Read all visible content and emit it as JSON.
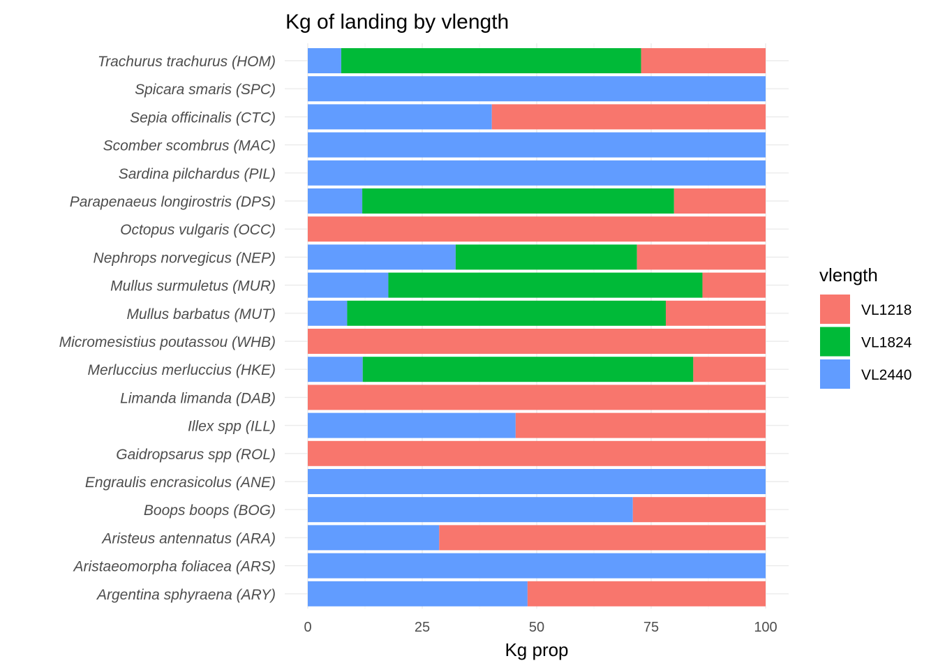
{
  "chart_data": {
    "type": "bar",
    "orientation": "horizontal",
    "stacked": true,
    "title": "Kg of landing by vlength",
    "xlabel": "Kg prop",
    "ylabel": "",
    "xlim": [
      0,
      100
    ],
    "xticks": [
      0,
      25,
      50,
      75,
      100
    ],
    "grid": true,
    "legend": {
      "title": "vlength",
      "position": "right"
    },
    "categories": [
      "Trachurus trachurus (HOM)",
      "Spicara smaris (SPC)",
      "Sepia officinalis (CTC)",
      "Scomber scombrus (MAC)",
      "Sardina pilchardus (PIL)",
      "Parapenaeus longirostris (DPS)",
      "Octopus vulgaris (OCC)",
      "Nephrops norvegicus (NEP)",
      "Mullus surmuletus (MUR)",
      "Mullus barbatus (MUT)",
      "Micromesistius poutassou (WHB)",
      "Merluccius merluccius (HKE)",
      "Limanda limanda (DAB)",
      "Illex spp (ILL)",
      "Gaidropsarus spp (ROL)",
      "Engraulis encrasicolus (ANE)",
      "Boops boops (BOG)",
      "Aristeus antennatus (ARA)",
      "Aristaeomorpha foliacea (ARS)",
      "Argentina sphyraena (ARY)"
    ],
    "series": [
      {
        "name": "VL1218",
        "color": "#F8766D",
        "values": [
          27.2,
          0,
          59.8,
          0,
          0,
          20.0,
          100,
          28.1,
          13.8,
          21.8,
          100,
          15.8,
          100,
          54.6,
          100,
          0,
          29.0,
          71.3,
          0,
          52.0
        ]
      },
      {
        "name": "VL1824",
        "color": "#00BA38",
        "values": [
          65.5,
          0,
          0,
          0,
          0,
          68.1,
          0,
          39.6,
          68.6,
          69.6,
          0,
          72.2,
          0,
          0,
          0,
          0,
          0,
          0,
          0,
          0
        ]
      },
      {
        "name": "VL2440",
        "color": "#619CFF",
        "values": [
          7.3,
          100,
          40.2,
          100,
          100,
          11.9,
          0,
          32.3,
          17.6,
          8.6,
          0,
          12.0,
          0,
          45.4,
          0,
          100,
          71.0,
          28.7,
          100,
          48.0
        ]
      }
    ]
  }
}
